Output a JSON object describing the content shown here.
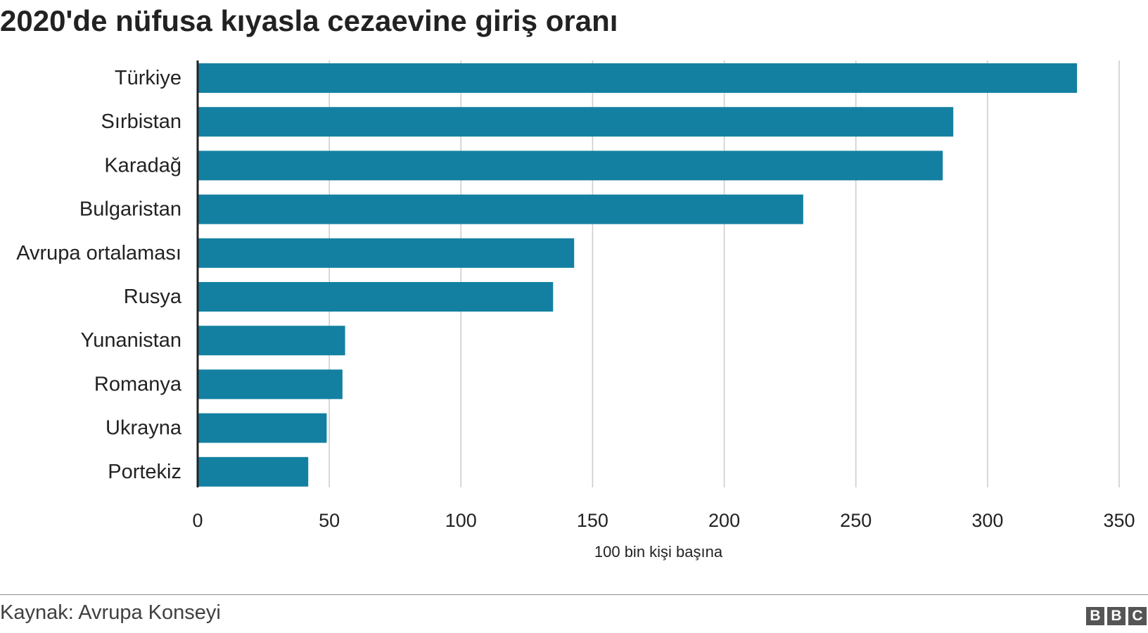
{
  "header": {
    "title": "2020'de nüfusa kıyasla cezaevine giriş oranı"
  },
  "chart_data": {
    "type": "bar",
    "orientation": "horizontal",
    "title": "2020'de nüfusa kıyasla cezaevine giriş oranı",
    "xlabel": "100 bin kişi başına",
    "ylabel": "",
    "categories": [
      "Türkiye",
      "Sırbistan",
      "Karadağ",
      "Bulgaristan",
      "Avrupa ortalaması",
      "Rusya",
      "Yunanistan",
      "Romanya",
      "Ukrayna",
      "Portekiz"
    ],
    "values": [
      334,
      287,
      283,
      230,
      143,
      135,
      56,
      55,
      49,
      42
    ],
    "xlim": [
      0,
      350
    ],
    "ticks": [
      0,
      50,
      100,
      150,
      200,
      250,
      300,
      350
    ],
    "grid": true,
    "bar_color": "#1380a1",
    "grid_color": "#cbcbcb",
    "axis_color": "#222222"
  },
  "footer": {
    "source": "Kaynak: Avrupa Konseyi",
    "logo": [
      "B",
      "B",
      "C"
    ]
  }
}
